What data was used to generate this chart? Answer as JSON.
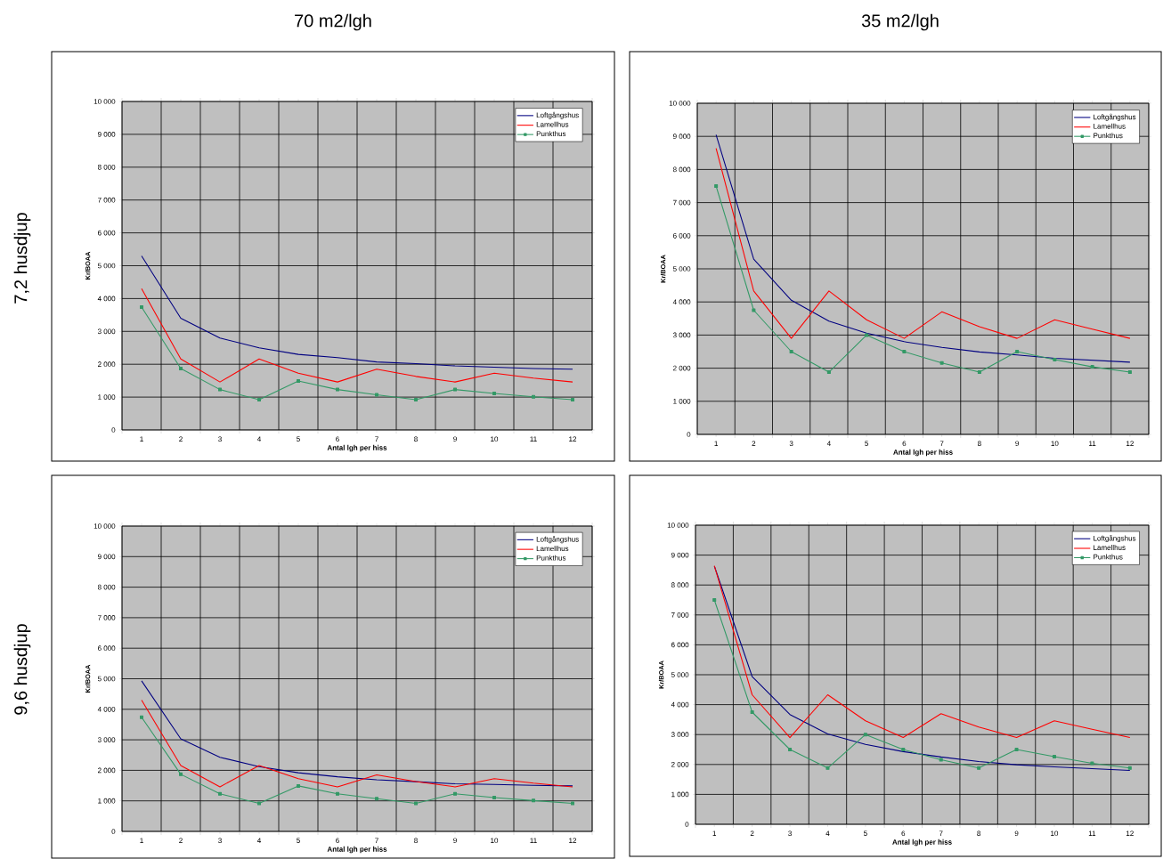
{
  "chart_data": [
    {
      "type": "line",
      "title": "70 m2/lgh",
      "annotations": [
        "7,2 husdjup"
      ],
      "xlabel": "Antal lgh per hiss",
      "ylabel": "Kr/BOAA",
      "categories": [
        "1",
        "2",
        "3",
        "4",
        "5",
        "6",
        "7",
        "8",
        "9",
        "10",
        "11",
        "12"
      ],
      "ylim": [
        0,
        10000
      ],
      "yticks": [
        {
          "value": 0,
          "label": "0"
        },
        {
          "value": 1000,
          "label": "1 000"
        },
        {
          "value": 2000,
          "label": "2 000"
        },
        {
          "value": 3000,
          "label": "3 000"
        },
        {
          "value": 4000,
          "label": "4 000"
        },
        {
          "value": 5000,
          "label": "5 000"
        },
        {
          "value": 6000,
          "label": "6 000"
        },
        {
          "value": 7000,
          "label": "7 000"
        },
        {
          "value": 8000,
          "label": "8 000"
        },
        {
          "value": 9000,
          "label": "9 000"
        },
        {
          "value": 10000,
          "label": "10 000"
        }
      ],
      "grid": true,
      "legend": "top right",
      "series": [
        {
          "name": "Loftgångshus",
          "color": "#000080",
          "marker": "none",
          "values": [
            5300,
            3400,
            2800,
            2500,
            2300,
            2200,
            2070,
            2020,
            1950,
            1910,
            1870,
            1850
          ]
        },
        {
          "name": "Lamellhus",
          "color": "#ff0000",
          "marker": "none",
          "values": [
            4300,
            2160,
            1460,
            2160,
            1730,
            1460,
            1850,
            1630,
            1460,
            1730,
            1580,
            1460
          ]
        },
        {
          "name": "Punkthus",
          "color": "#339966",
          "marker": "square",
          "values": [
            3740,
            1870,
            1230,
            920,
            1490,
            1230,
            1070,
            920,
            1230,
            1110,
            1010,
            920
          ]
        }
      ]
    },
    {
      "type": "line",
      "title": "35 m2/lgh",
      "xlabel": "Antal lgh per hiss",
      "ylabel": "Kr/BOAA",
      "categories": [
        "1",
        "2",
        "3",
        "4",
        "5",
        "6",
        "7",
        "8",
        "9",
        "10",
        "11",
        "12"
      ],
      "ylim": [
        0,
        10000
      ],
      "yticks": [
        {
          "value": 0,
          "label": "0"
        },
        {
          "value": 1000,
          "label": "1 000"
        },
        {
          "value": 2000,
          "label": "2 000"
        },
        {
          "value": 3000,
          "label": "3 000"
        },
        {
          "value": 4000,
          "label": "4 000"
        },
        {
          "value": 5000,
          "label": "5 000"
        },
        {
          "value": 6000,
          "label": "6 000"
        },
        {
          "value": 7000,
          "label": "7 000"
        },
        {
          "value": 8000,
          "label": "8 000"
        },
        {
          "value": 9000,
          "label": "9 000"
        },
        {
          "value": 10000,
          "label": "10 000"
        }
      ],
      "grid": true,
      "legend": "top right",
      "series": [
        {
          "name": "Loftgångshus",
          "color": "#000080",
          "marker": "none",
          "values": [
            9050,
            5290,
            4050,
            3420,
            3060,
            2800,
            2630,
            2490,
            2400,
            2300,
            2240,
            2180
          ]
        },
        {
          "name": "Lamellhus",
          "color": "#ff0000",
          "marker": "none",
          "values": [
            8640,
            4330,
            2900,
            4330,
            3460,
            2900,
            3700,
            3250,
            2900,
            3460,
            3180,
            2900
          ]
        },
        {
          "name": "Punkthus",
          "color": "#339966",
          "marker": "square",
          "values": [
            7500,
            3750,
            2500,
            1880,
            3000,
            2500,
            2160,
            1880,
            2500,
            2260,
            2040,
            1880
          ]
        }
      ]
    },
    {
      "type": "line",
      "annotations": [
        "9,6 husdjup"
      ],
      "xlabel": "Antal lgh per hiss",
      "ylabel": "Kr/BOAA",
      "categories": [
        "1",
        "2",
        "3",
        "4",
        "5",
        "6",
        "7",
        "8",
        "9",
        "10",
        "11",
        "12"
      ],
      "ylim": [
        0,
        10000
      ],
      "yticks": [
        {
          "value": 0,
          "label": "0"
        },
        {
          "value": 1000,
          "label": "1 000"
        },
        {
          "value": 2000,
          "label": "2 000"
        },
        {
          "value": 3000,
          "label": "3 000"
        },
        {
          "value": 4000,
          "label": "4 000"
        },
        {
          "value": 5000,
          "label": "5 000"
        },
        {
          "value": 6000,
          "label": "6 000"
        },
        {
          "value": 7000,
          "label": "7 000"
        },
        {
          "value": 8000,
          "label": "8 000"
        },
        {
          "value": 9000,
          "label": "9 000"
        },
        {
          "value": 10000,
          "label": "10 000"
        }
      ],
      "grid": true,
      "legend": "top right",
      "series": [
        {
          "name": "Loftgångshus",
          "color": "#000080",
          "marker": "none",
          "values": [
            4930,
            3030,
            2430,
            2120,
            1920,
            1790,
            1690,
            1630,
            1560,
            1540,
            1510,
            1490
          ]
        },
        {
          "name": "Lamellhus",
          "color": "#ff0000",
          "marker": "none",
          "values": [
            4300,
            2160,
            1460,
            2160,
            1730,
            1460,
            1850,
            1630,
            1460,
            1730,
            1580,
            1460
          ]
        },
        {
          "name": "Punkthus",
          "color": "#339966",
          "marker": "square",
          "values": [
            3740,
            1870,
            1230,
            920,
            1490,
            1230,
            1070,
            920,
            1230,
            1110,
            1010,
            920
          ]
        }
      ]
    },
    {
      "type": "line",
      "xlabel": "Antal lgh per hiss",
      "ylabel": "Kr/BOAA",
      "categories": [
        "1",
        "2",
        "3",
        "4",
        "5",
        "6",
        "7",
        "8",
        "9",
        "10",
        "11",
        "12"
      ],
      "ylim": [
        0,
        10000
      ],
      "yticks": [
        {
          "value": 0,
          "label": "0"
        },
        {
          "value": 1000,
          "label": "1 000"
        },
        {
          "value": 2000,
          "label": "2 000"
        },
        {
          "value": 3000,
          "label": "3 000"
        },
        {
          "value": 4000,
          "label": "4 000"
        },
        {
          "value": 5000,
          "label": "5 000"
        },
        {
          "value": 6000,
          "label": "6 000"
        },
        {
          "value": 7000,
          "label": "7 000"
        },
        {
          "value": 8000,
          "label": "8 000"
        },
        {
          "value": 9000,
          "label": "9 000"
        },
        {
          "value": 10000,
          "label": "10 000"
        }
      ],
      "grid": true,
      "legend": "top right",
      "series": [
        {
          "name": "Loftgångshus",
          "color": "#000080",
          "marker": "none",
          "values": [
            8630,
            4940,
            3670,
            3020,
            2670,
            2430,
            2250,
            2100,
            1990,
            1920,
            1860,
            1800
          ]
        },
        {
          "name": "Lamellhus",
          "color": "#ff0000",
          "marker": "none",
          "values": [
            8640,
            4330,
            2900,
            4330,
            3460,
            2900,
            3700,
            3250,
            2900,
            3460,
            3180,
            2900
          ]
        },
        {
          "name": "Punkthus",
          "color": "#339966",
          "marker": "square",
          "values": [
            7500,
            3750,
            2500,
            1880,
            3000,
            2500,
            2160,
            1880,
            2500,
            2260,
            2040,
            1880
          ]
        }
      ]
    }
  ]
}
